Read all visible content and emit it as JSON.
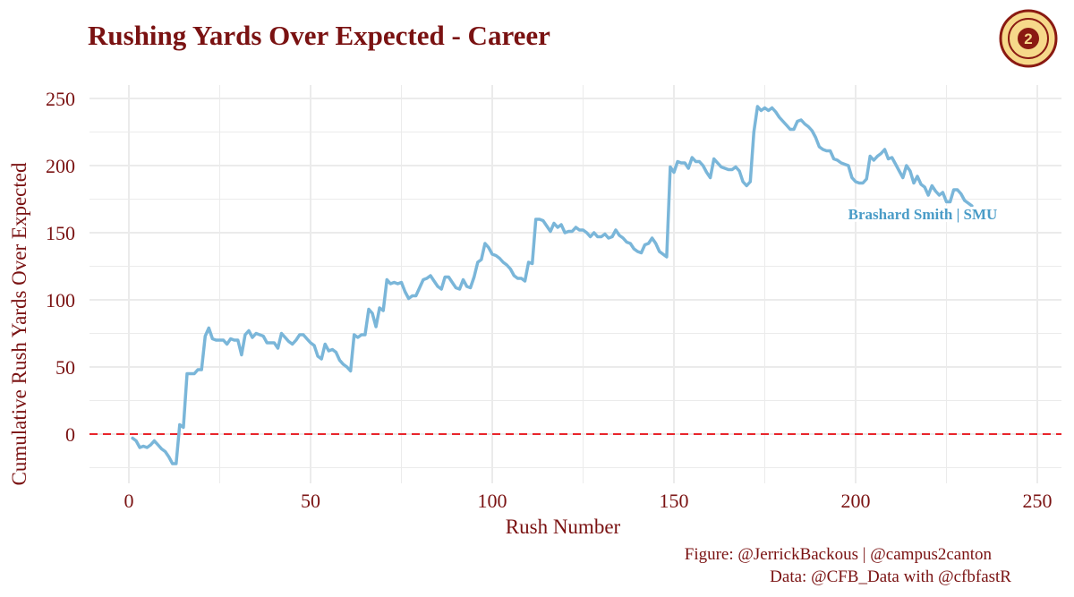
{
  "title": "Rushing Yards Over Expected - Career",
  "logo_text": "campus2canton",
  "caption_figure": "Figure: @JerrickBackous | @campus2canton",
  "caption_data": "Data: @CFB_Data with @cfbfastR",
  "colors": {
    "title": "#7a1212",
    "line": "#7ab6d9",
    "label": "#4a9cc7",
    "reference": "#e8252b",
    "grid": "#ebebeb",
    "logo_fill": "#f6d98a",
    "logo_ring": "#8a1a12"
  },
  "chart_data": {
    "type": "line",
    "title": "Rushing Yards Over Expected - Career",
    "xlabel": "Rush Number",
    "ylabel": "Cumulative Rush Yards Over Expected",
    "xlim": [
      -10,
      257
    ],
    "ylim": [
      -33,
      255
    ],
    "xticks": [
      0,
      50,
      100,
      150,
      200,
      250
    ],
    "yticks": [
      0,
      50,
      100,
      150,
      200,
      250
    ],
    "grid": true,
    "reference_line": {
      "y": 0,
      "style": "dashed"
    },
    "series": [
      {
        "name": "Brashard Smith | SMU",
        "points": [
          [
            1,
            -3
          ],
          [
            2,
            -5
          ],
          [
            3,
            -10
          ],
          [
            4,
            -9
          ],
          [
            5,
            -10
          ],
          [
            6,
            -8
          ],
          [
            7,
            -5
          ],
          [
            8,
            -8
          ],
          [
            9,
            -11
          ],
          [
            10,
            -13
          ],
          [
            11,
            -17
          ],
          [
            12,
            -22
          ],
          [
            13,
            -22
          ],
          [
            14,
            7
          ],
          [
            15,
            5
          ],
          [
            16,
            45
          ],
          [
            17,
            45
          ],
          [
            18,
            45
          ],
          [
            19,
            48
          ],
          [
            20,
            48
          ],
          [
            21,
            73
          ],
          [
            22,
            79
          ],
          [
            23,
            71
          ],
          [
            24,
            70
          ],
          [
            25,
            70
          ],
          [
            26,
            70
          ],
          [
            27,
            67
          ],
          [
            28,
            71
          ],
          [
            29,
            70
          ],
          [
            30,
            70
          ],
          [
            31,
            59
          ],
          [
            32,
            74
          ],
          [
            33,
            77
          ],
          [
            34,
            72
          ],
          [
            35,
            75
          ],
          [
            36,
            74
          ],
          [
            37,
            73
          ],
          [
            38,
            68
          ],
          [
            39,
            68
          ],
          [
            40,
            68
          ],
          [
            41,
            64
          ],
          [
            42,
            75
          ],
          [
            43,
            72
          ],
          [
            44,
            69
          ],
          [
            45,
            67
          ],
          [
            46,
            70
          ],
          [
            47,
            74
          ],
          [
            48,
            74
          ],
          [
            49,
            71
          ],
          [
            50,
            68
          ],
          [
            51,
            66
          ],
          [
            52,
            58
          ],
          [
            53,
            56
          ],
          [
            54,
            67
          ],
          [
            55,
            62
          ],
          [
            56,
            63
          ],
          [
            57,
            61
          ],
          [
            58,
            55
          ],
          [
            59,
            52
          ],
          [
            60,
            50
          ],
          [
            61,
            47
          ],
          [
            62,
            74
          ],
          [
            63,
            72
          ],
          [
            64,
            74
          ],
          [
            65,
            74
          ],
          [
            66,
            93
          ],
          [
            67,
            90
          ],
          [
            68,
            80
          ],
          [
            69,
            94
          ],
          [
            70,
            92
          ],
          [
            71,
            115
          ],
          [
            72,
            112
          ],
          [
            73,
            113
          ],
          [
            74,
            112
          ],
          [
            75,
            113
          ],
          [
            76,
            106
          ],
          [
            77,
            101
          ],
          [
            78,
            103
          ],
          [
            79,
            103
          ],
          [
            80,
            109
          ],
          [
            81,
            115
          ],
          [
            82,
            116
          ],
          [
            83,
            118
          ],
          [
            84,
            114
          ],
          [
            85,
            110
          ],
          [
            86,
            108
          ],
          [
            87,
            117
          ],
          [
            88,
            117
          ],
          [
            89,
            113
          ],
          [
            90,
            109
          ],
          [
            91,
            108
          ],
          [
            92,
            115
          ],
          [
            93,
            110
          ],
          [
            94,
            109
          ],
          [
            95,
            117
          ],
          [
            96,
            128
          ],
          [
            97,
            130
          ],
          [
            98,
            142
          ],
          [
            99,
            139
          ],
          [
            100,
            134
          ],
          [
            101,
            133
          ],
          [
            102,
            131
          ],
          [
            103,
            128
          ],
          [
            104,
            126
          ],
          [
            105,
            123
          ],
          [
            106,
            118
          ],
          [
            107,
            116
          ],
          [
            108,
            116
          ],
          [
            109,
            114
          ],
          [
            110,
            128
          ],
          [
            111,
            127
          ],
          [
            112,
            160
          ],
          [
            113,
            160
          ],
          [
            114,
            159
          ],
          [
            115,
            155
          ],
          [
            116,
            151
          ],
          [
            117,
            157
          ],
          [
            118,
            154
          ],
          [
            119,
            156
          ],
          [
            120,
            150
          ],
          [
            121,
            151
          ],
          [
            122,
            151
          ],
          [
            123,
            154
          ],
          [
            124,
            152
          ],
          [
            125,
            152
          ],
          [
            126,
            150
          ],
          [
            127,
            147
          ],
          [
            128,
            150
          ],
          [
            129,
            147
          ],
          [
            130,
            147
          ],
          [
            131,
            149
          ],
          [
            132,
            146
          ],
          [
            133,
            147
          ],
          [
            134,
            152
          ],
          [
            135,
            148
          ],
          [
            136,
            146
          ],
          [
            137,
            143
          ],
          [
            138,
            142
          ],
          [
            139,
            138
          ],
          [
            140,
            136
          ],
          [
            141,
            135
          ],
          [
            142,
            141
          ],
          [
            143,
            142
          ],
          [
            144,
            146
          ],
          [
            145,
            142
          ],
          [
            146,
            136
          ],
          [
            147,
            134
          ],
          [
            148,
            132
          ],
          [
            149,
            199
          ],
          [
            150,
            195
          ],
          [
            151,
            203
          ],
          [
            152,
            202
          ],
          [
            153,
            202
          ],
          [
            154,
            198
          ],
          [
            155,
            206
          ],
          [
            156,
            203
          ],
          [
            157,
            203
          ],
          [
            158,
            200
          ],
          [
            159,
            195
          ],
          [
            160,
            191
          ],
          [
            161,
            205
          ],
          [
            162,
            202
          ],
          [
            163,
            199
          ],
          [
            164,
            198
          ],
          [
            165,
            197
          ],
          [
            166,
            197
          ],
          [
            167,
            199
          ],
          [
            168,
            196
          ],
          [
            169,
            188
          ],
          [
            170,
            185
          ],
          [
            171,
            188
          ],
          [
            172,
            225
          ],
          [
            173,
            244
          ],
          [
            174,
            241
          ],
          [
            175,
            243
          ],
          [
            176,
            241
          ],
          [
            177,
            243
          ],
          [
            178,
            240
          ],
          [
            179,
            236
          ],
          [
            180,
            233
          ],
          [
            181,
            230
          ],
          [
            182,
            227
          ],
          [
            183,
            227
          ],
          [
            184,
            233
          ],
          [
            185,
            234
          ],
          [
            186,
            231
          ],
          [
            187,
            229
          ],
          [
            188,
            226
          ],
          [
            189,
            221
          ],
          [
            190,
            214
          ],
          [
            191,
            212
          ],
          [
            192,
            211
          ],
          [
            193,
            211
          ],
          [
            194,
            205
          ],
          [
            195,
            204
          ],
          [
            196,
            202
          ],
          [
            197,
            201
          ],
          [
            198,
            200
          ],
          [
            199,
            191
          ],
          [
            200,
            188
          ],
          [
            201,
            187
          ],
          [
            202,
            187
          ],
          [
            203,
            190
          ],
          [
            204,
            207
          ],
          [
            205,
            204
          ],
          [
            206,
            207
          ],
          [
            207,
            209
          ],
          [
            208,
            212
          ],
          [
            209,
            205
          ],
          [
            210,
            206
          ],
          [
            211,
            201
          ],
          [
            212,
            196
          ],
          [
            213,
            191
          ],
          [
            214,
            200
          ],
          [
            215,
            196
          ],
          [
            216,
            187
          ],
          [
            217,
            192
          ],
          [
            218,
            186
          ],
          [
            219,
            184
          ],
          [
            220,
            178
          ],
          [
            221,
            185
          ],
          [
            222,
            181
          ],
          [
            223,
            178
          ],
          [
            224,
            180
          ],
          [
            225,
            173
          ],
          [
            226,
            173
          ],
          [
            227,
            182
          ],
          [
            228,
            182
          ],
          [
            229,
            179
          ],
          [
            230,
            174
          ],
          [
            231,
            172
          ],
          [
            232,
            170
          ]
        ]
      }
    ],
    "series_label": "Brashard Smith | SMU"
  }
}
